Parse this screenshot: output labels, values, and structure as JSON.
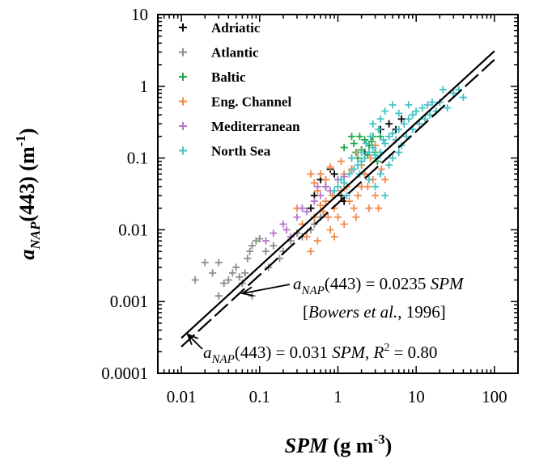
{
  "chart_data": {
    "type": "scatter",
    "x_scale": "log",
    "y_scale": "log",
    "xlim": [
      0.005,
      200
    ],
    "ylim": [
      0.0001,
      10
    ],
    "x_ticks": [
      0.01,
      0.1,
      1,
      10,
      100
    ],
    "x_tick_labels": [
      "0.01",
      "0.1",
      "1",
      "10",
      "100"
    ],
    "y_ticks": [
      0.0001,
      0.001,
      0.01,
      0.1,
      1,
      10
    ],
    "y_tick_labels": [
      "0.0001",
      "0.001",
      "0.01",
      "0.1",
      "1",
      "10"
    ],
    "grid": false,
    "legend_position": "top-left",
    "xlabel": {
      "main": "SPM",
      "rest": " (g m",
      "sup": "-3",
      "end": ")"
    },
    "ylabel": {
      "a": "a",
      "sub": "NAP",
      "mid": "(443) (m",
      "sup": "-1",
      "end": ")"
    },
    "series": [
      {
        "name": "Adriatic",
        "color": "#000000",
        "points": [
          [
            0.6,
            0.05
          ],
          [
            0.7,
            0.04
          ],
          [
            0.8,
            0.07
          ],
          [
            0.9,
            0.06
          ],
          [
            1.1,
            0.03
          ],
          [
            1.2,
            0.025
          ],
          [
            0.5,
            0.03
          ],
          [
            0.45,
            0.02
          ],
          [
            3.5,
            0.25
          ],
          [
            4.5,
            0.3
          ],
          [
            5.5,
            0.25
          ],
          [
            6.5,
            0.35
          ],
          [
            1.5,
            0.07
          ],
          [
            2.2,
            0.12
          ]
        ]
      },
      {
        "name": "Atlantic",
        "color": "#8c8c8c",
        "points": [
          [
            0.015,
            0.002
          ],
          [
            0.02,
            0.0035
          ],
          [
            0.025,
            0.0025
          ],
          [
            0.03,
            0.0035
          ],
          [
            0.035,
            0.0018
          ],
          [
            0.04,
            0.002
          ],
          [
            0.045,
            0.0025
          ],
          [
            0.05,
            0.003
          ],
          [
            0.055,
            0.0022
          ],
          [
            0.06,
            0.0018
          ],
          [
            0.065,
            0.0025
          ],
          [
            0.07,
            0.004
          ],
          [
            0.075,
            0.005
          ],
          [
            0.08,
            0.006
          ],
          [
            0.09,
            0.007
          ],
          [
            0.1,
            0.0075
          ],
          [
            0.12,
            0.005
          ],
          [
            0.13,
            0.003
          ],
          [
            0.15,
            0.006
          ],
          [
            0.18,
            0.004
          ],
          [
            0.2,
            0.005
          ],
          [
            0.25,
            0.007
          ],
          [
            0.3,
            0.009
          ],
          [
            0.35,
            0.008
          ],
          [
            0.45,
            0.01
          ],
          [
            0.5,
            0.012
          ],
          [
            0.6,
            0.015
          ],
          [
            0.08,
            0.0012
          ],
          [
            0.03,
            0.0012
          ]
        ]
      },
      {
        "name": "Baltic",
        "color": "#22a84a",
        "points": [
          [
            1.2,
            0.14
          ],
          [
            1.5,
            0.2
          ],
          [
            1.7,
            0.12
          ],
          [
            1.8,
            0.1
          ],
          [
            2.0,
            0.13
          ],
          [
            2.2,
            0.18
          ],
          [
            2.5,
            0.15
          ],
          [
            2.8,
            0.2
          ],
          [
            3.0,
            0.12
          ],
          [
            3.2,
            0.09
          ],
          [
            1.6,
            0.16
          ],
          [
            1.9,
            0.2
          ],
          [
            2.4,
            0.11
          ],
          [
            2.7,
            0.17
          ],
          [
            3.5,
            0.2
          ]
        ]
      },
      {
        "name": "Eng. Channel",
        "color": "#f08a4b",
        "points": [
          [
            0.3,
            0.02
          ],
          [
            0.35,
            0.012
          ],
          [
            0.4,
            0.008
          ],
          [
            0.45,
            0.005
          ],
          [
            0.5,
            0.015
          ],
          [
            0.55,
            0.007
          ],
          [
            0.6,
            0.022
          ],
          [
            0.65,
            0.018
          ],
          [
            0.7,
            0.025
          ],
          [
            0.75,
            0.015
          ],
          [
            0.8,
            0.01
          ],
          [
            0.85,
            0.03
          ],
          [
            0.9,
            0.02
          ],
          [
            1.0,
            0.05
          ],
          [
            1.1,
            0.035
          ],
          [
            1.2,
            0.06
          ],
          [
            1.3,
            0.04
          ],
          [
            1.4,
            0.025
          ],
          [
            1.5,
            0.07
          ],
          [
            1.6,
            0.02
          ],
          [
            1.7,
            0.015
          ],
          [
            1.8,
            0.03
          ],
          [
            2.0,
            0.08
          ],
          [
            2.2,
            0.06
          ],
          [
            2.4,
            0.04
          ],
          [
            2.6,
            0.1
          ],
          [
            2.8,
            0.05
          ],
          [
            3.0,
            0.03
          ],
          [
            3.3,
            0.02
          ],
          [
            3.6,
            0.07
          ],
          [
            4.0,
            0.05
          ],
          [
            0.5,
            0.045
          ],
          [
            0.6,
            0.06
          ],
          [
            0.7,
            0.05
          ],
          [
            0.55,
            0.035
          ],
          [
            1.0,
            0.015
          ],
          [
            1.2,
            0.012
          ],
          [
            0.9,
            0.008
          ],
          [
            2.0,
            0.04
          ],
          [
            1.5,
            0.1
          ],
          [
            1.8,
            0.12
          ],
          [
            0.8,
            0.075
          ],
          [
            0.45,
            0.06
          ],
          [
            1.1,
            0.09
          ],
          [
            2.5,
            0.02
          ],
          [
            3.0,
            0.15
          ]
        ]
      },
      {
        "name": "Mediterranean",
        "color": "#b576c9",
        "points": [
          [
            0.2,
            0.012
          ],
          [
            0.22,
            0.01
          ],
          [
            0.25,
            0.008
          ],
          [
            0.3,
            0.015
          ],
          [
            0.35,
            0.02
          ],
          [
            0.4,
            0.018
          ],
          [
            0.5,
            0.025
          ],
          [
            0.6,
            0.03
          ],
          [
            0.7,
            0.04
          ],
          [
            0.8,
            0.035
          ],
          [
            1.0,
            0.05
          ],
          [
            0.12,
            0.007
          ],
          [
            0.15,
            0.009
          ],
          [
            0.55,
            0.04
          ],
          [
            1.2,
            0.055
          ]
        ]
      },
      {
        "name": "North Sea",
        "color": "#45c3c6",
        "points": [
          [
            0.9,
            0.035
          ],
          [
            1.0,
            0.04
          ],
          [
            1.1,
            0.05
          ],
          [
            1.2,
            0.045
          ],
          [
            1.4,
            0.06
          ],
          [
            1.6,
            0.07
          ],
          [
            1.8,
            0.08
          ],
          [
            2.0,
            0.09
          ],
          [
            2.2,
            0.1
          ],
          [
            2.5,
            0.12
          ],
          [
            2.8,
            0.14
          ],
          [
            3.0,
            0.11
          ],
          [
            3.2,
            0.1
          ],
          [
            3.5,
            0.12
          ],
          [
            4.0,
            0.16
          ],
          [
            4.5,
            0.2
          ],
          [
            5.0,
            0.22
          ],
          [
            5.5,
            0.18
          ],
          [
            6.0,
            0.25
          ],
          [
            7.0,
            0.3
          ],
          [
            8.0,
            0.35
          ],
          [
            9.0,
            0.4
          ],
          [
            10,
            0.45
          ],
          [
            12,
            0.5
          ],
          [
            14,
            0.55
          ],
          [
            16,
            0.6
          ],
          [
            20,
            0.6
          ],
          [
            25,
            0.5
          ],
          [
            30,
            0.8
          ],
          [
            35,
            0.9
          ],
          [
            40,
            0.7
          ],
          [
            18,
            0.45
          ],
          [
            3.5,
            0.06
          ],
          [
            4.5,
            0.08
          ],
          [
            5.0,
            0.1
          ],
          [
            6.0,
            0.12
          ],
          [
            3.0,
            0.04
          ],
          [
            2.5,
            0.05
          ],
          [
            4.0,
            0.03
          ],
          [
            2.0,
            0.12
          ],
          [
            2.3,
            0.16
          ],
          [
            2.6,
            0.2
          ],
          [
            1.9,
            0.06
          ],
          [
            1.5,
            0.1
          ],
          [
            3.8,
            0.18
          ],
          [
            6.5,
            0.15
          ],
          [
            7.5,
            0.2
          ],
          [
            9.0,
            0.25
          ],
          [
            11,
            0.3
          ],
          [
            13,
            0.35
          ],
          [
            15,
            0.4
          ],
          [
            5.0,
            0.55
          ],
          [
            4.0,
            0.45
          ],
          [
            3.5,
            0.35
          ],
          [
            2.8,
            0.3
          ],
          [
            6.0,
            0.42
          ],
          [
            8.0,
            0.55
          ],
          [
            22,
            0.9
          ],
          [
            1.3,
            0.03
          ],
          [
            3.3,
            0.25
          ]
        ]
      }
    ],
    "fit_lines": [
      {
        "slope": 0.031,
        "style": "solid",
        "x_range": [
          0.01,
          100
        ]
      },
      {
        "slope": 0.0235,
        "style": "dashed",
        "x_range": [
          0.01,
          100
        ]
      }
    ],
    "annotations": [
      {
        "id": "bowers",
        "a": "a",
        "sub": "NAP",
        "rest": "(443) = 0.0235 ",
        "italic": "SPM",
        "line2_open": "[",
        "line2_italic": "Bowers et al.",
        "line2_rest": ", 1996]",
        "arrow_to": [
          0.06,
          0.0013
        ]
      },
      {
        "id": "fit",
        "a": "a",
        "sub": "NAP",
        "rest": "(443) = 0.031 ",
        "italic": "SPM",
        "tail": ", ",
        "r": "R",
        "rsup": "2",
        "rval": " = 0.80",
        "arrow_to": [
          0.012,
          0.00035
        ]
      }
    ]
  }
}
